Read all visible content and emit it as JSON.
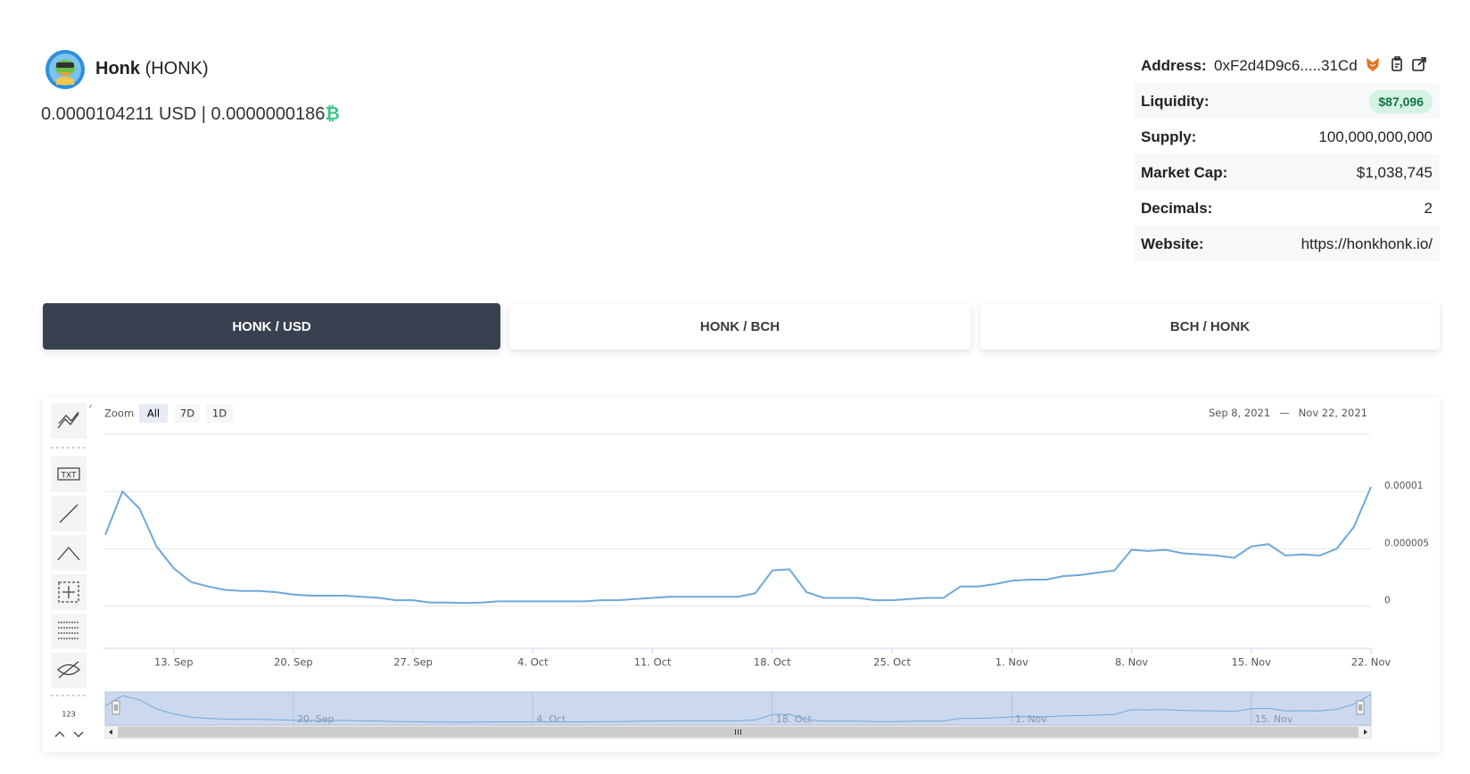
{
  "header": {
    "name": "Honk",
    "symbol": "(HONK)",
    "price": "0.0000104211 USD | 0.0000000186",
    "price_currency_symbol": "₿"
  },
  "info": {
    "rows": [
      {
        "label": "Address:",
        "value": "0xF2d4D9c6.....31Cd"
      },
      {
        "label": "Liquidity:",
        "value": "$87,096"
      },
      {
        "label": "Supply:",
        "value": "100,000,000,000"
      },
      {
        "label": "Market Cap:",
        "value": "$1,038,745"
      },
      {
        "label": "Decimals:",
        "value": "2"
      },
      {
        "label": "Website:",
        "value": "https://honkhonk.io/"
      }
    ]
  },
  "tabs": [
    {
      "label": "HONK / USD",
      "active": true
    },
    {
      "label": "HONK / BCH",
      "active": false
    },
    {
      "label": "BCH / HONK",
      "active": false
    }
  ],
  "toolbar": {
    "text_tool": "TXT",
    "measure_tool": "123"
  },
  "chart_data": {
    "type": "line",
    "zoom_label": "Zoom",
    "zoom_buttons": [
      "All",
      "7D",
      "1D"
    ],
    "zoom_selected": "All",
    "range_from": "Sep 8, 2021",
    "range_separator": "—",
    "range_to": "Nov 22, 2021",
    "color": "#6fa8da",
    "grid": true,
    "x": [
      "2021-09-09",
      "2021-09-10",
      "2021-09-11",
      "2021-09-12",
      "2021-09-13",
      "2021-09-14",
      "2021-09-15",
      "2021-09-16",
      "2021-09-17",
      "2021-09-18",
      "2021-09-19",
      "2021-09-20",
      "2021-09-21",
      "2021-09-22",
      "2021-09-23",
      "2021-09-24",
      "2021-09-25",
      "2021-09-26",
      "2021-09-27",
      "2021-09-28",
      "2021-09-29",
      "2021-09-30",
      "2021-10-01",
      "2021-10-02",
      "2021-10-03",
      "2021-10-04",
      "2021-10-05",
      "2021-10-06",
      "2021-10-07",
      "2021-10-08",
      "2021-10-09",
      "2021-10-10",
      "2021-10-11",
      "2021-10-12",
      "2021-10-13",
      "2021-10-14",
      "2021-10-15",
      "2021-10-16",
      "2021-10-17",
      "2021-10-18",
      "2021-10-19",
      "2021-10-20",
      "2021-10-21",
      "2021-10-22",
      "2021-10-23",
      "2021-10-24",
      "2021-10-25",
      "2021-10-26",
      "2021-10-27",
      "2021-10-28",
      "2021-10-29",
      "2021-10-30",
      "2021-10-31",
      "2021-11-01",
      "2021-11-02",
      "2021-11-03",
      "2021-11-04",
      "2021-11-05",
      "2021-11-06",
      "2021-11-07",
      "2021-11-08",
      "2021-11-09",
      "2021-11-10",
      "2021-11-11",
      "2021-11-12",
      "2021-11-13",
      "2021-11-14",
      "2021-11-15",
      "2021-11-16",
      "2021-11-17",
      "2021-11-18",
      "2021-11-19",
      "2021-11-20",
      "2021-11-21",
      "2021-11-22"
    ],
    "values": [
      6.2e-06,
      1e-05,
      8.5e-06,
      5.2e-06,
      3.3e-06,
      2.1e-06,
      1.7e-06,
      1.4e-06,
      1.3e-06,
      1.3e-06,
      1.2e-06,
      1e-06,
      9e-07,
      9e-07,
      9e-07,
      8e-07,
      7e-07,
      5e-07,
      5e-07,
      3e-07,
      3e-07,
      2.5e-07,
      3e-07,
      4e-07,
      4e-07,
      4e-07,
      4e-07,
      4e-07,
      4e-07,
      5e-07,
      5e-07,
      6e-07,
      7e-07,
      8e-07,
      8e-07,
      8e-07,
      8e-07,
      8e-07,
      1.1e-06,
      3.1e-06,
      3.2e-06,
      1.2e-06,
      7e-07,
      7e-07,
      7e-07,
      5e-07,
      5e-07,
      6e-07,
      7e-07,
      7e-07,
      1.7e-06,
      1.7e-06,
      1.9e-06,
      2.2e-06,
      2.3e-06,
      2.3e-06,
      2.6e-06,
      2.7e-06,
      2.9e-06,
      3.1e-06,
      4.9e-06,
      4.8e-06,
      4.9e-06,
      4.6e-06,
      4.5e-06,
      4.4e-06,
      4.2e-06,
      5.2e-06,
      5.4e-06,
      4.4e-06,
      4.5e-06,
      4.4e-06,
      5e-06,
      6.9e-06,
      1.04e-05
    ],
    "xlim": [
      "2021-09-09",
      "2021-11-22"
    ],
    "xticks": [
      {
        "value": "2021-09-13",
        "label": "13. Sep"
      },
      {
        "value": "2021-09-20",
        "label": "20. Sep"
      },
      {
        "value": "2021-09-27",
        "label": "27. Sep"
      },
      {
        "value": "2021-10-04",
        "label": "4. Oct"
      },
      {
        "value": "2021-10-11",
        "label": "11. Oct"
      },
      {
        "value": "2021-10-18",
        "label": "18. Oct"
      },
      {
        "value": "2021-10-25",
        "label": "25. Oct"
      },
      {
        "value": "2021-11-01",
        "label": "1. Nov"
      },
      {
        "value": "2021-11-08",
        "label": "8. Nov"
      },
      {
        "value": "2021-11-15",
        "label": "15. Nov"
      },
      {
        "value": "2021-11-22",
        "label": "22. Nov"
      }
    ],
    "navigator_xticks": [
      {
        "value": "2021-09-20",
        "label": "20. Sep"
      },
      {
        "value": "2021-10-04",
        "label": "4. Oct"
      },
      {
        "value": "2021-10-18",
        "label": "18. Oct"
      },
      {
        "value": "2021-11-01",
        "label": "1. Nov"
      },
      {
        "value": "2021-11-15",
        "label": "15. Nov"
      }
    ],
    "ylim": [
      -3.7e-06,
      1.5e-05
    ],
    "yticks": [
      0,
      5e-06,
      1e-05
    ]
  }
}
